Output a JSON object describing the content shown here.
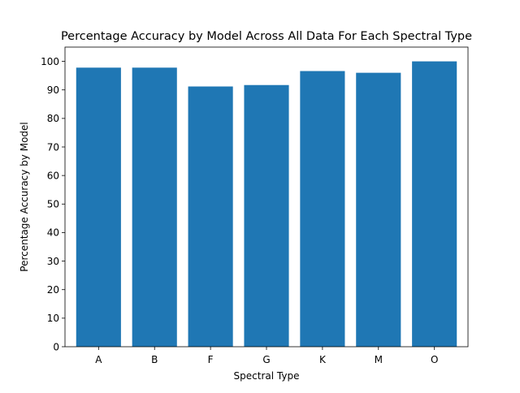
{
  "chart_data": {
    "type": "bar",
    "title": "Percentage Accuracy by Model Across All Data For Each Spectral Type",
    "xlabel": "Spectral Type",
    "ylabel": "Percentage Accuracy by Model",
    "categories": [
      "A",
      "B",
      "F",
      "G",
      "K",
      "M",
      "O"
    ],
    "values": [
      97.8,
      97.8,
      91.2,
      91.7,
      96.6,
      96.0,
      100.0
    ],
    "ylim": [
      0,
      105
    ],
    "yticks": [
      0,
      10,
      20,
      30,
      40,
      50,
      60,
      70,
      80,
      90,
      100
    ],
    "grid": false,
    "legend": "none",
    "bar_color": "#1f77b4"
  }
}
